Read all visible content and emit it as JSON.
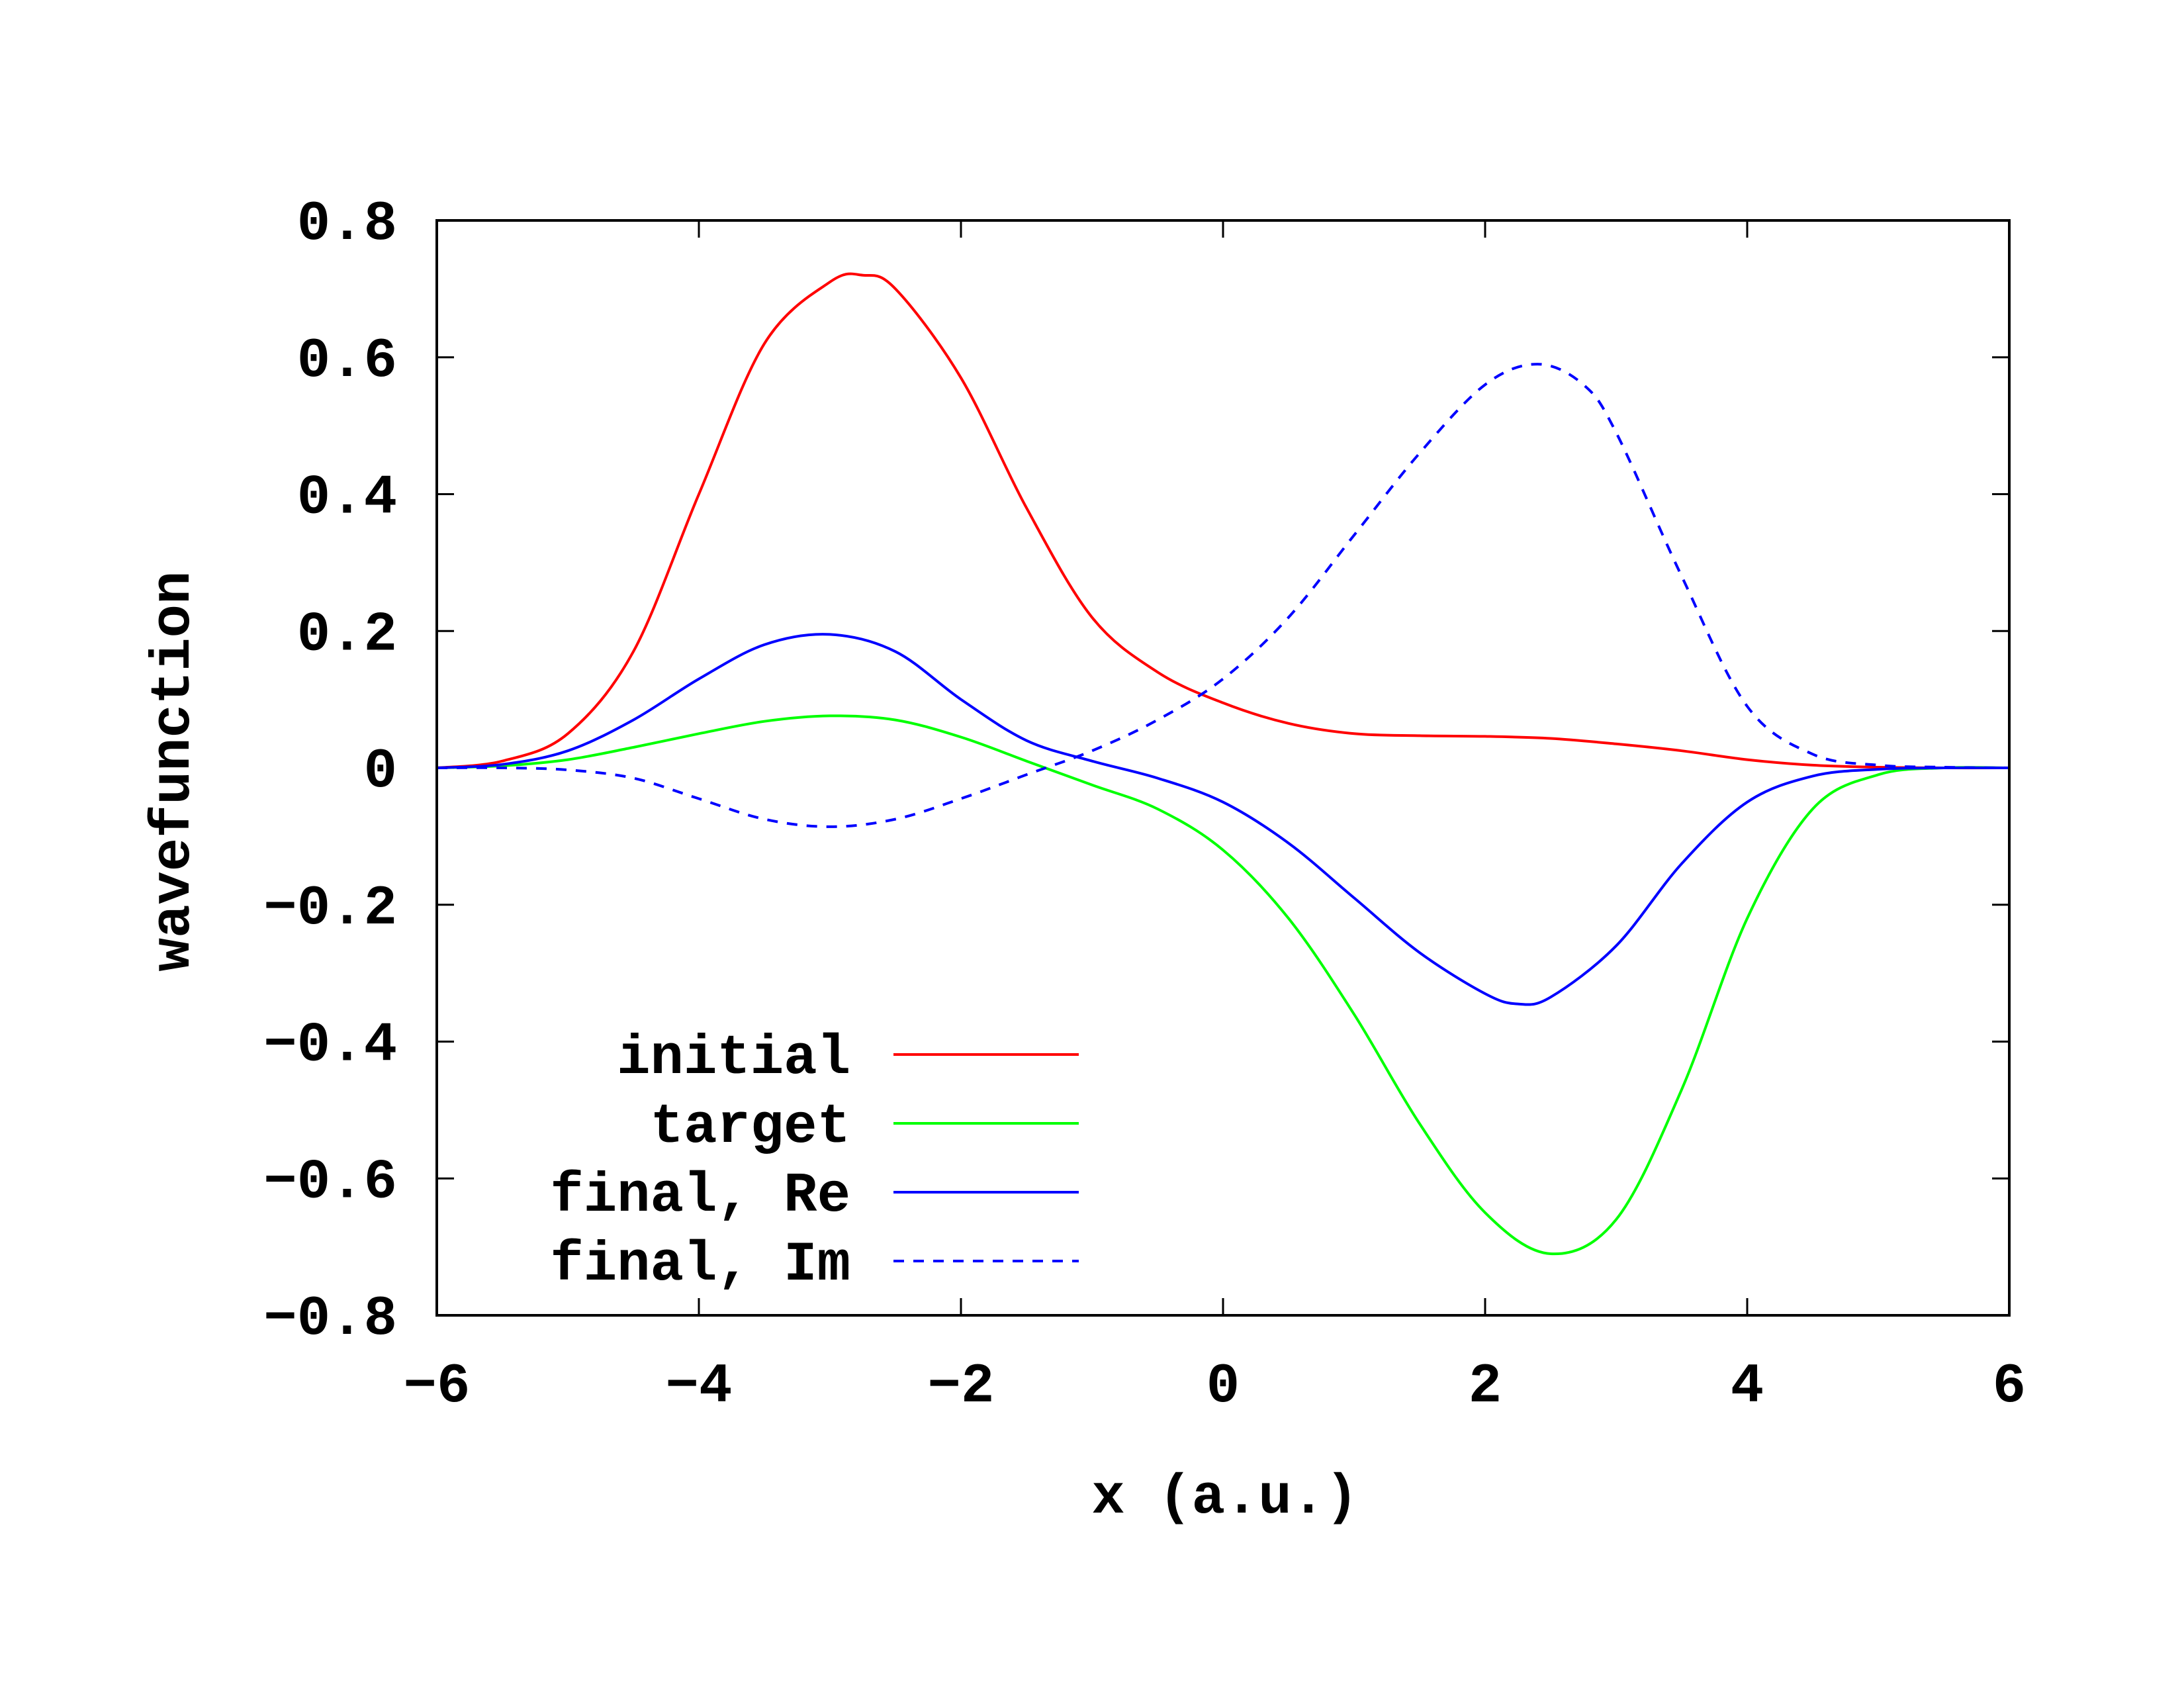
{
  "chart_data": {
    "type": "line",
    "title": "",
    "xlabel": "x (a.u.)",
    "ylabel": "wavefunction",
    "xlim": [
      -6,
      6
    ],
    "ylim": [
      -0.8,
      0.8
    ],
    "x_ticks": [
      -6,
      -4,
      -2,
      0,
      2,
      4,
      6
    ],
    "x_tick_labels": [
      "−6",
      "−4",
      "−2",
      "0",
      "2",
      "4",
      "6"
    ],
    "y_ticks": [
      0.8,
      0.6,
      0.4,
      0.2,
      0,
      -0.2,
      -0.4,
      -0.6,
      -0.8
    ],
    "y_tick_labels": [
      "0.8",
      "0.6",
      "0.4",
      "0.2",
      "0",
      "−0.2",
      "−0.4",
      "−0.6",
      "−0.8"
    ],
    "grid": false,
    "legend_position": "bottom-left",
    "series": [
      {
        "name": "initial",
        "color": "#ff0000",
        "dash": "solid",
        "x": [
          -6,
          -5.5,
          -5,
          -4.5,
          -4,
          -3.5,
          -3,
          -2.75,
          -2.5,
          -2,
          -1.5,
          -1,
          -0.5,
          0,
          0.5,
          1,
          1.5,
          2,
          2.5,
          3,
          3.5,
          4,
          4.5,
          5,
          5.5,
          6
        ],
        "y": [
          0.0,
          0.01,
          0.05,
          0.17,
          0.4,
          0.62,
          0.71,
          0.72,
          0.7,
          0.57,
          0.38,
          0.22,
          0.14,
          0.095,
          0.065,
          0.05,
          0.047,
          0.046,
          0.043,
          0.035,
          0.025,
          0.012,
          0.004,
          0.001,
          0.0,
          0.0
        ]
      },
      {
        "name": "target",
        "color": "#00ff00",
        "dash": "solid",
        "x": [
          -6,
          -5.5,
          -5,
          -4.5,
          -4,
          -3.5,
          -3,
          -2.5,
          -2,
          -1.5,
          -1,
          -0.5,
          0,
          0.5,
          1,
          1.5,
          2,
          2.5,
          3,
          3.5,
          4,
          4.5,
          5,
          5.5,
          6
        ],
        "y": [
          0.0,
          0.003,
          0.012,
          0.03,
          0.05,
          0.068,
          0.076,
          0.07,
          0.045,
          0.01,
          -0.025,
          -0.06,
          -0.12,
          -0.22,
          -0.36,
          -0.52,
          -0.65,
          -0.71,
          -0.66,
          -0.47,
          -0.22,
          -0.06,
          -0.01,
          0.0,
          0.0
        ]
      },
      {
        "name": "final, Re",
        "color": "#0000ff",
        "dash": "solid",
        "x": [
          -6,
          -5.5,
          -5,
          -4.5,
          -4,
          -3.5,
          -3,
          -2.5,
          -2,
          -1.5,
          -1,
          -0.5,
          0,
          0.5,
          1,
          1.5,
          2,
          2.25,
          2.5,
          3,
          3.5,
          4,
          4.5,
          5,
          5.5,
          6
        ],
        "y": [
          0.0,
          0.005,
          0.025,
          0.07,
          0.13,
          0.18,
          0.195,
          0.17,
          0.1,
          0.04,
          0.01,
          -0.015,
          -0.05,
          -0.11,
          -0.19,
          -0.27,
          -0.33,
          -0.345,
          -0.335,
          -0.26,
          -0.14,
          -0.05,
          -0.012,
          -0.002,
          0.0,
          0.0
        ]
      },
      {
        "name": "final, Im",
        "color": "#0000ff",
        "dash": "dashed",
        "x": [
          -6,
          -5.5,
          -5,
          -4.5,
          -4,
          -3.5,
          -3,
          -2.5,
          -2,
          -1.5,
          -1,
          -0.5,
          0,
          0.5,
          1,
          1.5,
          2,
          2.4,
          2.75,
          3,
          3.5,
          4,
          4.5,
          5,
          5.5,
          6
        ],
        "y": [
          0.0,
          0.0,
          -0.003,
          -0.015,
          -0.045,
          -0.075,
          -0.086,
          -0.075,
          -0.045,
          -0.01,
          0.025,
          0.07,
          0.13,
          0.22,
          0.34,
          0.46,
          0.56,
          0.59,
          0.56,
          0.49,
          0.28,
          0.09,
          0.02,
          0.004,
          0.001,
          0.0
        ]
      }
    ]
  }
}
